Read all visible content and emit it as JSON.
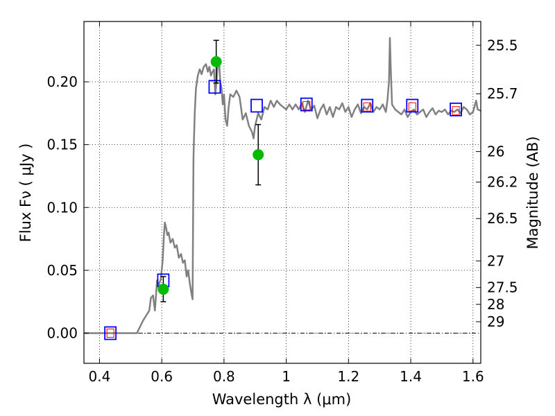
{
  "chart_data": {
    "type": "scatter",
    "xlabel": "Wavelength  λ (μm)",
    "ylabel": "Flux  Fν  ( μJy )",
    "y2label": "Magnitude (AB)",
    "xlim": [
      0.35,
      1.625
    ],
    "ylim": [
      -0.024,
      0.248
    ],
    "grid": true,
    "x_ticks": [
      0.4,
      0.6,
      0.8,
      1.0,
      1.2,
      1.4,
      1.6
    ],
    "x_tick_labels": [
      "0.4",
      "0.6",
      "0.8",
      "1",
      "1.2",
      "1.4",
      "1.6"
    ],
    "y_ticks": [
      0.0,
      0.05,
      0.1,
      0.15,
      0.2
    ],
    "y_tick_labels": [
      "0.00",
      "0.05",
      "0.10",
      "0.15",
      "0.20"
    ],
    "y2_ticks": [
      {
        "flux": 0.2291,
        "label": "25.5"
      },
      {
        "flux": 0.1905,
        "label": "25.7"
      },
      {
        "flux": 0.1445,
        "label": "26"
      },
      {
        "flux": 0.1202,
        "label": "26.2"
      },
      {
        "flux": 0.0912,
        "label": "26.5"
      },
      {
        "flux": 0.0575,
        "label": "27"
      },
      {
        "flux": 0.0363,
        "label": "27.5"
      },
      {
        "flux": 0.0229,
        "label": "28"
      },
      {
        "flux": 0.0091,
        "label": "29"
      }
    ],
    "series": [
      {
        "type": "line",
        "color": "#808080",
        "points": [
          [
            0.35,
            0.0
          ],
          [
            0.44,
            0.0
          ],
          [
            0.52,
            0.0
          ],
          [
            0.54,
            0.01
          ],
          [
            0.56,
            0.018
          ],
          [
            0.565,
            0.028
          ],
          [
            0.572,
            0.03
          ],
          [
            0.578,
            0.018
          ],
          [
            0.585,
            0.042
          ],
          [
            0.59,
            0.038
          ],
          [
            0.597,
            0.043
          ],
          [
            0.603,
            0.058
          ],
          [
            0.607,
            0.078
          ],
          [
            0.61,
            0.088
          ],
          [
            0.614,
            0.084
          ],
          [
            0.618,
            0.078
          ],
          [
            0.622,
            0.08
          ],
          [
            0.628,
            0.072
          ],
          [
            0.635,
            0.075
          ],
          [
            0.642,
            0.068
          ],
          [
            0.648,
            0.07
          ],
          [
            0.655,
            0.06
          ],
          [
            0.662,
            0.063
          ],
          [
            0.668,
            0.056
          ],
          [
            0.674,
            0.058
          ],
          [
            0.68,
            0.045
          ],
          [
            0.685,
            0.05
          ],
          [
            0.69,
            0.04
          ],
          [
            0.695,
            0.032
          ],
          [
            0.699,
            0.027
          ],
          [
            0.702,
            0.14
          ],
          [
            0.706,
            0.175
          ],
          [
            0.71,
            0.195
          ],
          [
            0.716,
            0.205
          ],
          [
            0.722,
            0.21
          ],
          [
            0.728,
            0.206
          ],
          [
            0.735,
            0.212
          ],
          [
            0.742,
            0.214
          ],
          [
            0.748,
            0.208
          ],
          [
            0.753,
            0.212
          ],
          [
            0.758,
            0.205
          ],
          [
            0.763,
            0.208
          ],
          [
            0.768,
            0.21
          ],
          [
            0.772,
            0.19
          ],
          [
            0.776,
            0.2
          ],
          [
            0.78,
            0.215
          ],
          [
            0.784,
            0.217
          ],
          [
            0.788,
            0.2
          ],
          [
            0.792,
            0.195
          ],
          [
            0.796,
            0.182
          ],
          [
            0.8,
            0.19
          ],
          [
            0.805,
            0.17
          ],
          [
            0.81,
            0.165
          ],
          [
            0.815,
            0.18
          ],
          [
            0.82,
            0.19
          ],
          [
            0.83,
            0.188
          ],
          [
            0.84,
            0.193
          ],
          [
            0.85,
            0.188
          ],
          [
            0.86,
            0.17
          ],
          [
            0.87,
            0.175
          ],
          [
            0.88,
            0.165
          ],
          [
            0.89,
            0.16
          ],
          [
            0.895,
            0.155
          ],
          [
            0.9,
            0.165
          ],
          [
            0.91,
            0.175
          ],
          [
            0.92,
            0.17
          ],
          [
            0.93,
            0.18
          ],
          [
            0.94,
            0.178
          ],
          [
            0.95,
            0.185
          ],
          [
            0.96,
            0.18
          ],
          [
            0.97,
            0.185
          ],
          [
            0.98,
            0.182
          ],
          [
            0.99,
            0.18
          ],
          [
            1.0,
            0.178
          ],
          [
            1.01,
            0.182
          ],
          [
            1.02,
            0.178
          ],
          [
            1.03,
            0.182
          ],
          [
            1.04,
            0.178
          ],
          [
            1.05,
            0.183
          ],
          [
            1.06,
            0.176
          ],
          [
            1.07,
            0.185
          ],
          [
            1.08,
            0.178
          ],
          [
            1.09,
            0.181
          ],
          [
            1.1,
            0.171
          ],
          [
            1.11,
            0.178
          ],
          [
            1.12,
            0.182
          ],
          [
            1.13,
            0.174
          ],
          [
            1.14,
            0.18
          ],
          [
            1.15,
            0.172
          ],
          [
            1.16,
            0.18
          ],
          [
            1.17,
            0.178
          ],
          [
            1.18,
            0.183
          ],
          [
            1.19,
            0.176
          ],
          [
            1.2,
            0.18
          ],
          [
            1.21,
            0.172
          ],
          [
            1.22,
            0.178
          ],
          [
            1.23,
            0.182
          ],
          [
            1.24,
            0.175
          ],
          [
            1.25,
            0.18
          ],
          [
            1.26,
            0.178
          ],
          [
            1.27,
            0.183
          ],
          [
            1.28,
            0.176
          ],
          [
            1.29,
            0.18
          ],
          [
            1.3,
            0.178
          ],
          [
            1.31,
            0.182
          ],
          [
            1.32,
            0.176
          ],
          [
            1.325,
            0.185
          ],
          [
            1.33,
            0.2
          ],
          [
            1.333,
            0.235
          ],
          [
            1.336,
            0.21
          ],
          [
            1.34,
            0.182
          ],
          [
            1.35,
            0.178
          ],
          [
            1.36,
            0.176
          ],
          [
            1.37,
            0.174
          ],
          [
            1.38,
            0.178
          ],
          [
            1.39,
            0.172
          ],
          [
            1.4,
            0.176
          ],
          [
            1.41,
            0.178
          ],
          [
            1.42,
            0.174
          ],
          [
            1.43,
            0.176
          ],
          [
            1.44,
            0.178
          ],
          [
            1.45,
            0.172
          ],
          [
            1.46,
            0.176
          ],
          [
            1.47,
            0.179
          ],
          [
            1.48,
            0.174
          ],
          [
            1.49,
            0.177
          ],
          [
            1.5,
            0.176
          ],
          [
            1.51,
            0.178
          ],
          [
            1.52,
            0.174
          ],
          [
            1.53,
            0.177
          ],
          [
            1.54,
            0.176
          ],
          [
            1.55,
            0.178
          ],
          [
            1.56,
            0.175
          ],
          [
            1.57,
            0.18
          ],
          [
            1.58,
            0.178
          ],
          [
            1.59,
            0.174
          ],
          [
            1.6,
            0.176
          ],
          [
            1.61,
            0.185
          ],
          [
            1.615,
            0.178
          ],
          [
            1.625,
            0.177
          ]
        ]
      },
      {
        "type": "squares",
        "color": "#0000ff",
        "points": [
          [
            0.435,
            0.0
          ],
          [
            0.605,
            0.042
          ],
          [
            0.77,
            0.196
          ],
          [
            0.905,
            0.181
          ],
          [
            1.065,
            0.182
          ],
          [
            1.26,
            0.181
          ],
          [
            1.405,
            0.181
          ],
          [
            1.545,
            0.178
          ]
        ]
      },
      {
        "type": "small-squares",
        "color": "#ff0000",
        "points": [
          [
            0.435,
            0.0
          ],
          [
            1.065,
            0.181
          ],
          [
            1.26,
            0.18
          ],
          [
            1.405,
            0.18
          ],
          [
            1.545,
            0.177
          ]
        ]
      },
      {
        "type": "circles-with-errorbars",
        "color": "#00bb00",
        "points": [
          {
            "x": 0.605,
            "y": 0.035,
            "err": 0.01
          },
          {
            "x": 0.775,
            "y": 0.216,
            "err": 0.017
          },
          {
            "x": 0.91,
            "y": 0.142,
            "err": 0.024
          }
        ]
      }
    ]
  }
}
